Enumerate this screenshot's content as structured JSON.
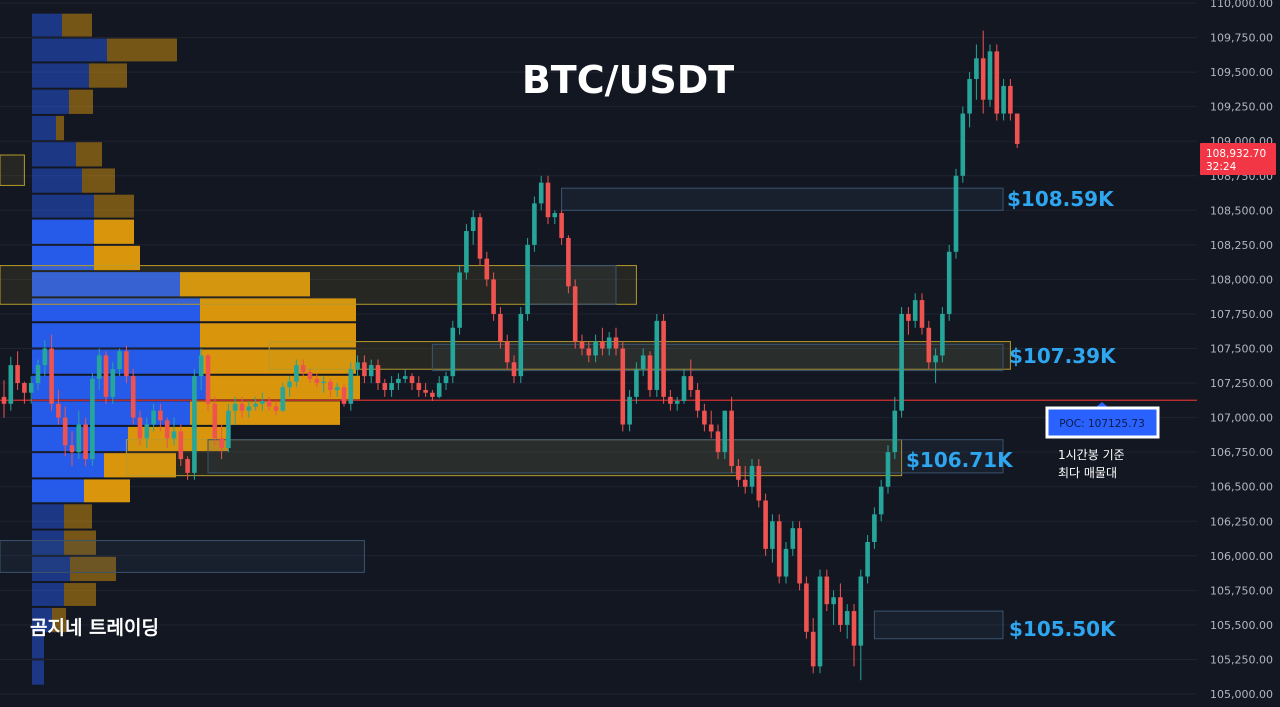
{
  "colors": {
    "background": "#131722",
    "grid": "#1f2330",
    "up": "#26a69a",
    "down": "#ef5350",
    "vp_up": "#2962ff",
    "vp_down": "#f0a30a",
    "poc_line": "#d32f2f",
    "zone_yellow": "#b59a2a",
    "zone_blue": "#3a5470",
    "level_label": "#2ea6f0",
    "axis_text": "#b2b5be"
  },
  "title": "BTC/USDT",
  "watermark": "곰지네 트레이딩",
  "price_badge": {
    "price": "108,932.70",
    "countdown": "32:24"
  },
  "poc_box": {
    "label": "POC: 107125.73"
  },
  "poc_note": [
    "1시간봉 기준",
    "최다 매물대"
  ],
  "level_labels": [
    "$108.59K",
    "$107.39K",
    "$106.71K",
    "$105.50K"
  ],
  "chart_data": {
    "type": "candlestick",
    "title": "BTC/USDT",
    "y_axis": {
      "range": [
        105000,
        110000
      ],
      "ticks": [
        "110,000.00",
        "109,750.00",
        "109,500.00",
        "109,250.00",
        "109,000.00",
        "108,750.00",
        "108,500.00",
        "108,250.00",
        "108,000.00",
        "107,750.00",
        "107,500.00",
        "107,250.00",
        "107,000.00",
        "106,750.00",
        "106,500.00",
        "106,250.00",
        "106,000.00",
        "105,750.00",
        "105,500.00",
        "105,250.00",
        "105,000.00"
      ]
    },
    "current_price": 108932.7,
    "poc_price": 107125.73,
    "levels": [
      {
        "label": "$108.59K",
        "low": 108500,
        "high": 108660,
        "from_bar": 82
      },
      {
        "label": "$107.39K",
        "low": 107340,
        "high": 107530,
        "from_bar": 63
      },
      {
        "label": "$106.71K",
        "low": 106600,
        "high": 106840,
        "from_bar": 30
      },
      {
        "label": "$105.50K",
        "low": 105400,
        "high": 105600,
        "from_bar": 128
      }
    ],
    "zones": [
      {
        "kind": "yellow",
        "from_bar": -2,
        "to_bar": 93,
        "low": 107820,
        "high": 108100
      },
      {
        "kind": "yellow",
        "from_bar": -2,
        "to_bar": 3,
        "low": 108680,
        "high": 108900
      },
      {
        "kind": "yellow",
        "from_bar": 39,
        "to_bar": 148,
        "low": 107350,
        "high": 107550
      },
      {
        "kind": "yellow",
        "from_bar": 18,
        "to_bar": 132,
        "low": 106580,
        "high": 106840
      },
      {
        "kind": "blue",
        "from_bar": -2,
        "to_bar": 53,
        "low": 105880,
        "high": 106110
      },
      {
        "kind": "blue",
        "from_bar": 77,
        "to_bar": 90,
        "low": 107820,
        "high": 108100
      }
    ],
    "volume_profile": {
      "rows": [
        {
          "low": 109750,
          "high": 109930,
          "up": 30,
          "down": 30
        },
        {
          "low": 109570,
          "high": 109750,
          "up": 75,
          "down": 70
        },
        {
          "low": 109380,
          "high": 109570,
          "up": 57,
          "down": 38
        },
        {
          "low": 109190,
          "high": 109380,
          "up": 37,
          "down": 24
        },
        {
          "low": 109000,
          "high": 109190,
          "up": 24,
          "down": 8
        },
        {
          "low": 108810,
          "high": 109000,
          "up": 44,
          "down": 26
        },
        {
          "low": 108620,
          "high": 108810,
          "up": 50,
          "down": 33
        },
        {
          "low": 108440,
          "high": 108620,
          "up": 62,
          "down": 40
        },
        {
          "low": 108250,
          "high": 108440,
          "up": 62,
          "down": 40
        },
        {
          "low": 108060,
          "high": 108250,
          "up": 62,
          "down": 46
        },
        {
          "low": 107870,
          "high": 108060,
          "up": 148,
          "down": 130
        },
        {
          "low": 107690,
          "high": 107870,
          "up": 168,
          "down": 156
        },
        {
          "low": 107500,
          "high": 107690,
          "up": 168,
          "down": 156
        },
        {
          "low": 107310,
          "high": 107500,
          "up": 168,
          "down": 156
        },
        {
          "low": 107125,
          "high": 107310,
          "up": 178,
          "down": 150
        },
        {
          "low": 106940,
          "high": 107125,
          "up": 158,
          "down": 150
        },
        {
          "low": 106750,
          "high": 106940,
          "up": 96,
          "down": 100
        },
        {
          "low": 106560,
          "high": 106750,
          "up": 72,
          "down": 72
        },
        {
          "low": 106380,
          "high": 106560,
          "up": 52,
          "down": 46
        },
        {
          "low": 106190,
          "high": 106380,
          "up": 32,
          "down": 28
        },
        {
          "low": 106000,
          "high": 106190,
          "up": 32,
          "down": 32
        },
        {
          "low": 105810,
          "high": 106000,
          "up": 38,
          "down": 46
        },
        {
          "low": 105630,
          "high": 105810,
          "up": 32,
          "down": 32
        },
        {
          "low": 105440,
          "high": 105630,
          "up": 20,
          "down": 14
        },
        {
          "low": 105250,
          "high": 105440,
          "up": 12,
          "down": 0
        },
        {
          "low": 105060,
          "high": 105250,
          "up": 12,
          "down": 0
        }
      ]
    },
    "candles": [
      [
        107150,
        107270,
        107000,
        107100
      ],
      [
        107100,
        107440,
        107050,
        107380
      ],
      [
        107380,
        107480,
        107200,
        107250
      ],
      [
        107250,
        107260,
        107100,
        107180
      ],
      [
        107180,
        107300,
        107100,
        107250
      ],
      [
        107250,
        107420,
        107200,
        107380
      ],
      [
        107380,
        107560,
        107300,
        107500
      ],
      [
        107500,
        107600,
        107050,
        107100
      ],
      [
        107100,
        107200,
        106950,
        107000
      ],
      [
        107000,
        107080,
        106720,
        106800
      ],
      [
        106800,
        106900,
        106650,
        106750
      ],
      [
        106750,
        107050,
        106700,
        106950
      ],
      [
        106950,
        107000,
        106650,
        106700
      ],
      [
        106700,
        107320,
        106650,
        107280
      ],
      [
        107280,
        107500,
        107200,
        107450
      ],
      [
        107450,
        107480,
        107100,
        107150
      ],
      [
        107150,
        107400,
        107100,
        107350
      ],
      [
        107350,
        107500,
        107300,
        107480
      ],
      [
        107480,
        107520,
        107250,
        107300
      ],
      [
        107300,
        107350,
        106950,
        107000
      ],
      [
        107000,
        107050,
        106800,
        106850
      ],
      [
        106850,
        107000,
        106780,
        106950
      ],
      [
        106950,
        107100,
        106900,
        107050
      ],
      [
        107050,
        107100,
        106900,
        106980
      ],
      [
        106980,
        107000,
        106780,
        106850
      ],
      [
        106850,
        107000,
        106800,
        106900
      ],
      [
        106900,
        106950,
        106650,
        106700
      ],
      [
        106700,
        106720,
        106550,
        106600
      ],
      [
        106600,
        107350,
        106550,
        107300
      ],
      [
        107300,
        107500,
        107200,
        107450
      ],
      [
        107450,
        107460,
        107050,
        107100
      ],
      [
        107100,
        107150,
        106800,
        106850
      ],
      [
        106850,
        106950,
        106700,
        106780
      ],
      [
        106780,
        107100,
        106750,
        107050
      ],
      [
        107050,
        107150,
        106950,
        107100
      ],
      [
        107100,
        107150,
        107000,
        107050
      ],
      [
        107050,
        107120,
        107000,
        107080
      ],
      [
        107080,
        107150,
        107050,
        107100
      ],
      [
        107100,
        107180,
        107050,
        107120
      ],
      [
        107120,
        107150,
        107050,
        107080
      ],
      [
        107080,
        107120,
        107020,
        107050
      ],
      [
        107050,
        107250,
        107040,
        107220
      ],
      [
        107220,
        107300,
        107150,
        107260
      ],
      [
        107260,
        107420,
        107220,
        107380
      ],
      [
        107380,
        107420,
        107300,
        107330
      ],
      [
        107330,
        107350,
        107250,
        107280
      ],
      [
        107280,
        107320,
        107220,
        107250
      ],
      [
        107250,
        107300,
        107180,
        107260
      ],
      [
        107260,
        107280,
        107150,
        107200
      ],
      [
        107200,
        107250,
        107150,
        107220
      ],
      [
        107220,
        107240,
        107080,
        107100
      ],
      [
        107100,
        107400,
        107050,
        107350
      ],
      [
        107350,
        107450,
        107300,
        107400
      ],
      [
        107400,
        107450,
        107250,
        107300
      ],
      [
        107300,
        107420,
        107250,
        107380
      ],
      [
        107380,
        107420,
        107200,
        107250
      ],
      [
        107250,
        107280,
        107150,
        107200
      ],
      [
        107200,
        107300,
        107150,
        107250
      ],
      [
        107250,
        107320,
        107200,
        107280
      ],
      [
        107280,
        107350,
        107250,
        107300
      ],
      [
        107300,
        107320,
        107200,
        107250
      ],
      [
        107250,
        107300,
        107150,
        107200
      ],
      [
        107200,
        107250,
        107150,
        107180
      ],
      [
        107180,
        107200,
        107120,
        107150
      ],
      [
        107150,
        107300,
        107140,
        107250
      ],
      [
        107250,
        107330,
        107200,
        107300
      ],
      [
        107300,
        107700,
        107250,
        107650
      ],
      [
        107650,
        108100,
        107600,
        108050
      ],
      [
        108050,
        108400,
        108000,
        108350
      ],
      [
        108350,
        108500,
        108250,
        108450
      ],
      [
        108450,
        108480,
        108100,
        108150
      ],
      [
        108150,
        108200,
        107950,
        108000
      ],
      [
        108000,
        108050,
        107700,
        107750
      ],
      [
        107750,
        107800,
        107500,
        107550
      ],
      [
        107550,
        107600,
        107350,
        107400
      ],
      [
        107400,
        107450,
        107250,
        107300
      ],
      [
        107300,
        107800,
        107250,
        107750
      ],
      [
        107750,
        108300,
        107700,
        108250
      ],
      [
        108250,
        108600,
        108200,
        108550
      ],
      [
        108550,
        108750,
        108500,
        108700
      ],
      [
        108700,
        108750,
        108400,
        108450
      ],
      [
        108450,
        108500,
        108400,
        108480
      ],
      [
        108480,
        108500,
        108250,
        108300
      ],
      [
        108300,
        108320,
        107900,
        107950
      ],
      [
        107950,
        108000,
        107500,
        107550
      ],
      [
        107550,
        107600,
        107450,
        107500
      ],
      [
        107500,
        107550,
        107400,
        107450
      ],
      [
        107450,
        107600,
        107400,
        107550
      ],
      [
        107550,
        107650,
        107450,
        107500
      ],
      [
        107500,
        107620,
        107450,
        107580
      ],
      [
        107580,
        107650,
        107450,
        107500
      ],
      [
        107500,
        107550,
        106900,
        106950
      ],
      [
        106950,
        107200,
        106900,
        107150
      ],
      [
        107150,
        107400,
        107100,
        107350
      ],
      [
        107350,
        107500,
        107300,
        107450
      ],
      [
        107450,
        107480,
        107150,
        107200
      ],
      [
        107200,
        107750,
        107150,
        107700
      ],
      [
        107700,
        107750,
        107100,
        107150
      ],
      [
        107150,
        107200,
        107050,
        107100
      ],
      [
        107100,
        107150,
        107050,
        107120
      ],
      [
        107120,
        107350,
        107100,
        107300
      ],
      [
        107300,
        107420,
        107150,
        107200
      ],
      [
        107200,
        107250,
        107000,
        107050
      ],
      [
        107050,
        107100,
        106900,
        106950
      ],
      [
        106950,
        107050,
        106850,
        106900
      ],
      [
        106900,
        106950,
        106700,
        106750
      ],
      [
        106750,
        107050,
        106700,
        107050
      ],
      [
        107050,
        107150,
        106600,
        106650
      ],
      [
        106650,
        106700,
        106500,
        106550
      ],
      [
        106550,
        106650,
        106450,
        106500
      ],
      [
        106500,
        106700,
        106450,
        106650
      ],
      [
        106650,
        106700,
        106350,
        106400
      ],
      [
        106400,
        106450,
        106000,
        106050
      ],
      [
        106050,
        106300,
        105950,
        106250
      ],
      [
        106250,
        106300,
        105800,
        105850
      ],
      [
        105850,
        106100,
        105800,
        106050
      ],
      [
        106050,
        106250,
        106000,
        106200
      ],
      [
        106200,
        106250,
        105750,
        105800
      ],
      [
        105800,
        105850,
        105400,
        105450
      ],
      [
        105450,
        105550,
        105150,
        105200
      ],
      [
        105200,
        105900,
        105150,
        105850
      ],
      [
        105850,
        105900,
        105600,
        105650
      ],
      [
        105650,
        105750,
        105500,
        105700
      ],
      [
        105700,
        105800,
        105450,
        105500
      ],
      [
        105500,
        105650,
        105400,
        105600
      ],
      [
        105600,
        105650,
        105200,
        105350
      ],
      [
        105350,
        105900,
        105100,
        105850
      ],
      [
        105850,
        106150,
        105800,
        106100
      ],
      [
        106100,
        106350,
        106050,
        106300
      ],
      [
        106300,
        106550,
        106250,
        106500
      ],
      [
        106500,
        106800,
        106450,
        106750
      ],
      [
        106750,
        107150,
        106700,
        107050
      ],
      [
        107050,
        107800,
        107000,
        107750
      ],
      [
        107750,
        107800,
        107600,
        107700
      ],
      [
        107700,
        107900,
        107650,
        107850
      ],
      [
        107850,
        107900,
        107600,
        107650
      ],
      [
        107650,
        107700,
        107350,
        107400
      ],
      [
        107400,
        107500,
        107250,
        107450
      ],
      [
        107450,
        107800,
        107400,
        107750
      ],
      [
        107750,
        108250,
        107700,
        108200
      ],
      [
        108200,
        108800,
        108150,
        108750
      ],
      [
        108750,
        109250,
        108700,
        109200
      ],
      [
        109200,
        109500,
        109100,
        109450
      ],
      [
        109450,
        109700,
        109300,
        109600
      ],
      [
        109600,
        109800,
        109200,
        109300
      ],
      [
        109300,
        109700,
        109250,
        109650
      ],
      [
        109650,
        109700,
        109150,
        109200
      ],
      [
        109200,
        109450,
        109150,
        109400
      ],
      [
        109400,
        109450,
        109150,
        109200
      ],
      [
        109200,
        109200,
        108950,
        108980
      ]
    ]
  }
}
